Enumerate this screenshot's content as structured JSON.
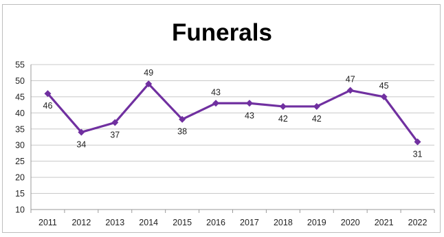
{
  "chart_data": {
    "type": "line",
    "title": "Funerals",
    "xlabel": "",
    "ylabel": "",
    "categories": [
      "2011",
      "2012",
      "2013",
      "2014",
      "2015",
      "2016",
      "2017",
      "2018",
      "2019",
      "2020",
      "2021",
      "2022"
    ],
    "series": [
      {
        "values": [
          46,
          34,
          37,
          49,
          38,
          43,
          43,
          42,
          42,
          47,
          45,
          31
        ]
      }
    ],
    "data_labels": [
      "46",
      "34",
      "37",
      "49",
      "38",
      "43",
      "43",
      "42",
      "42",
      "47",
      "45",
      "31"
    ],
    "yticks": [
      "10",
      "15",
      "20",
      "25",
      "30",
      "35",
      "40",
      "45",
      "50",
      "55"
    ],
    "ylim": [
      10,
      55
    ],
    "grid": true,
    "legend": "none",
    "line_color": "#7030a0",
    "grid_color": "#c8c8c8"
  }
}
